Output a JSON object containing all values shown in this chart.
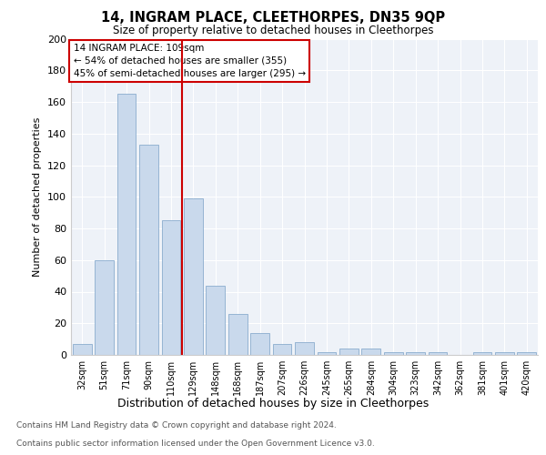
{
  "title1": "14, INGRAM PLACE, CLEETHORPES, DN35 9QP",
  "title2": "Size of property relative to detached houses in Cleethorpes",
  "xlabel": "Distribution of detached houses by size in Cleethorpes",
  "ylabel": "Number of detached properties",
  "categories": [
    "32sqm",
    "51sqm",
    "71sqm",
    "90sqm",
    "110sqm",
    "129sqm",
    "148sqm",
    "168sqm",
    "187sqm",
    "207sqm",
    "226sqm",
    "245sqm",
    "265sqm",
    "284sqm",
    "304sqm",
    "323sqm",
    "342sqm",
    "362sqm",
    "381sqm",
    "401sqm",
    "420sqm"
  ],
  "values": [
    7,
    60,
    165,
    133,
    85,
    99,
    44,
    26,
    14,
    7,
    8,
    2,
    4,
    4,
    2,
    2,
    2,
    0,
    2,
    2,
    2
  ],
  "bar_color": "#c9d9ec",
  "bar_edge_color": "#8aacce",
  "vline_color": "#cc0000",
  "vline_pos": 4.5,
  "annotation_title": "14 INGRAM PLACE: 109sqm",
  "annotation_line1": "← 54% of detached houses are smaller (355)",
  "annotation_line2": "45% of semi-detached houses are larger (295) →",
  "annotation_box_color": "#cc0000",
  "ylim": [
    0,
    200
  ],
  "yticks": [
    0,
    20,
    40,
    60,
    80,
    100,
    120,
    140,
    160,
    180,
    200
  ],
  "footer1": "Contains HM Land Registry data © Crown copyright and database right 2024.",
  "footer2": "Contains public sector information licensed under the Open Government Licence v3.0.",
  "bg_color": "#eef2f8"
}
